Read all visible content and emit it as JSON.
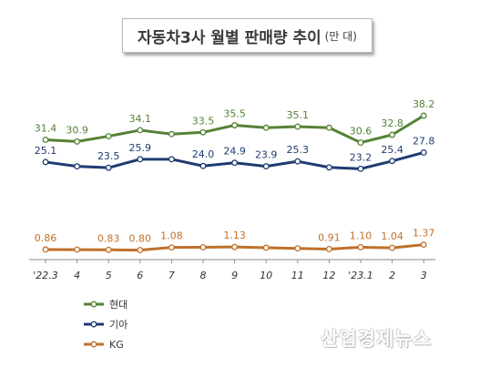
{
  "title": "자동차3사 월별 판매량 추이",
  "unit": "(만 대)",
  "watermark": "산업경제뉴스",
  "chart_data": {
    "type": "line",
    "categories": [
      "'22.3",
      "4",
      "5",
      "6",
      "7",
      "8",
      "9",
      "10",
      "11",
      "12",
      "'23.1",
      "2",
      "3"
    ],
    "series": [
      {
        "name": "현대",
        "color": "#548235",
        "values": [
          31.4,
          30.9,
          32.4,
          34.1,
          33.0,
          33.5,
          35.5,
          34.8,
          35.1,
          34.8,
          30.6,
          32.8,
          38.2
        ],
        "labels": [
          "31.4",
          "30.9",
          "",
          "34.1",
          "",
          "33.5",
          "35.5",
          "",
          "35.1",
          "",
          "30.6",
          "32.8",
          "38.2"
        ]
      },
      {
        "name": "기아",
        "color": "#1f3b70",
        "values": [
          25.1,
          23.9,
          23.5,
          25.9,
          25.9,
          24.0,
          24.9,
          23.9,
          25.3,
          23.6,
          23.2,
          25.4,
          27.8
        ],
        "labels": [
          "25.1",
          "",
          "23.5",
          "25.9",
          "",
          "24.0",
          "24.9",
          "23.9",
          "25.3",
          "",
          "23.2",
          "25.4",
          "27.8"
        ]
      },
      {
        "name": "KG",
        "color": "#c0702a",
        "values": [
          0.86,
          0.85,
          0.83,
          0.8,
          1.08,
          1.1,
          1.13,
          1.05,
          0.98,
          0.91,
          1.1,
          1.04,
          1.37
        ],
        "labels": [
          "0.86",
          "",
          "0.83",
          "0.80",
          "1.08",
          "",
          "1.13",
          "",
          "",
          "0.91",
          "1.10",
          "1.04",
          "1.37"
        ]
      }
    ]
  }
}
